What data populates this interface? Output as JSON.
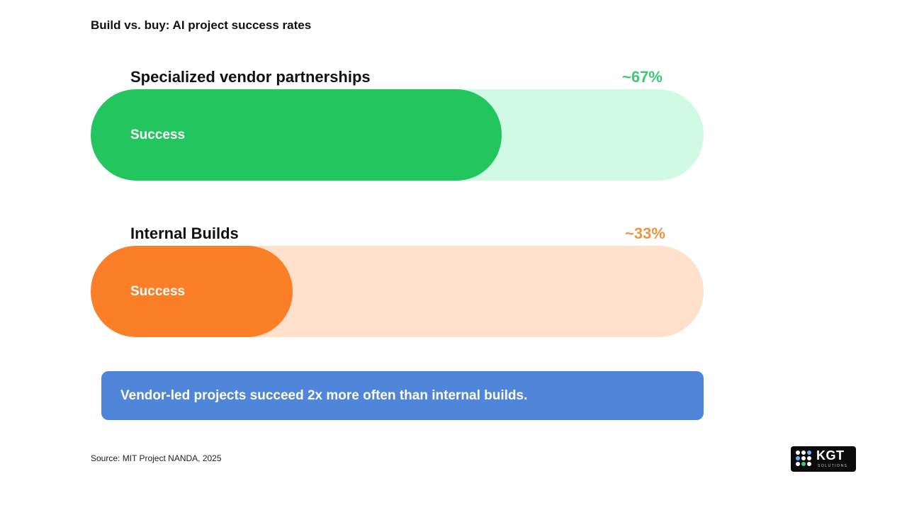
{
  "title": "Build vs. buy: AI project success rates",
  "colors": {
    "vendor_fill": "#22c55e",
    "vendor_track": "#d1fae5",
    "vendor_value": "#3ec874",
    "internal_fill": "#fb7f26",
    "internal_track": "#fee0cb",
    "internal_value": "#f0943f",
    "callout_bg": "#4f86d9"
  },
  "chart_data": {
    "type": "bar",
    "orientation": "horizontal",
    "title": "Build vs. buy: AI project success rates",
    "categories": [
      "Specialized vendor partnerships",
      "Internal Builds"
    ],
    "values": [
      67,
      33
    ],
    "value_labels": [
      "~67%",
      "~33%"
    ],
    "fill_label": "Success",
    "xlim": [
      0,
      100
    ],
    "grid": false
  },
  "callout": "Vendor-led projects succeed 2x more often than internal builds.",
  "source": "Source: MIT Project NANDA, 2025",
  "logo": {
    "text": "KGT",
    "sub": "SOLUTIONS"
  }
}
